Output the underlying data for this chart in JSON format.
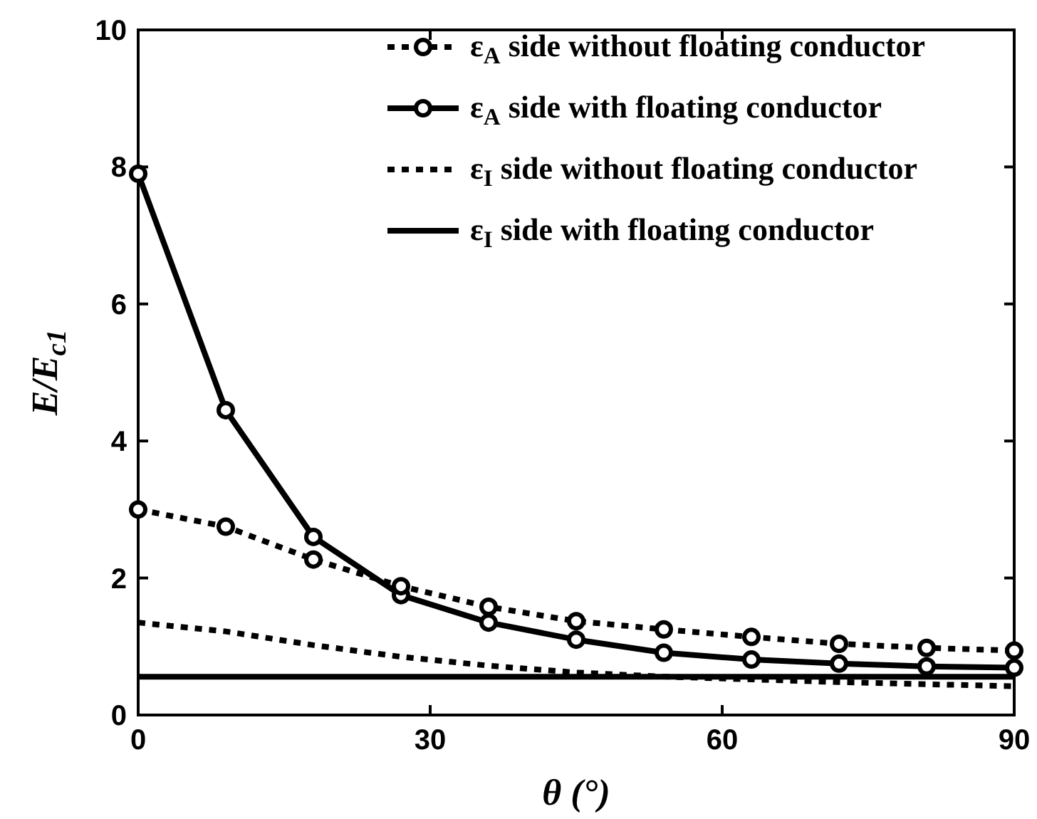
{
  "chart_data": {
    "type": "line",
    "xlabel": "θ (°)",
    "ylabel": "E/E$_{c1}$",
    "x": [
      0,
      9,
      18,
      27,
      36,
      45,
      54,
      63,
      72,
      81,
      90
    ],
    "xlim": [
      0,
      90
    ],
    "xticks": [
      0,
      30,
      60,
      90
    ],
    "ylim": [
      0,
      10
    ],
    "yticks": [
      0,
      2,
      4,
      6,
      8,
      10
    ],
    "grid": false,
    "legend": "top right",
    "series": [
      {
        "name": "ε$_{A}$ side without floating conductor",
        "color": "#000000",
        "marker": "circle",
        "line_style": "dotted",
        "values": [
          3.0,
          2.75,
          2.27,
          1.88,
          1.58,
          1.37,
          1.25,
          1.14,
          1.04,
          0.98,
          0.94
        ]
      },
      {
        "name": "ε$_{A}$ side with floating conductor",
        "color": "#000000",
        "marker": "circle",
        "line_style": "solid",
        "values": [
          7.9,
          4.45,
          2.6,
          1.75,
          1.35,
          1.1,
          0.91,
          0.81,
          0.75,
          0.71,
          0.69
        ]
      },
      {
        "name": "ε$_{I}$ side without floating conductor",
        "color": "#000000",
        "marker": "none",
        "line_style": "dotted",
        "values": [
          1.35,
          1.22,
          1.02,
          0.85,
          0.72,
          0.62,
          0.56,
          0.52,
          0.48,
          0.45,
          0.42
        ]
      },
      {
        "name": "ε$_{I}$ side with floating conductor",
        "color": "#000000",
        "marker": "none",
        "line_style": "solid",
        "values": [
          0.56,
          0.56,
          0.56,
          0.56,
          0.56,
          0.56,
          0.56,
          0.56,
          0.56,
          0.56,
          0.56
        ]
      }
    ]
  }
}
